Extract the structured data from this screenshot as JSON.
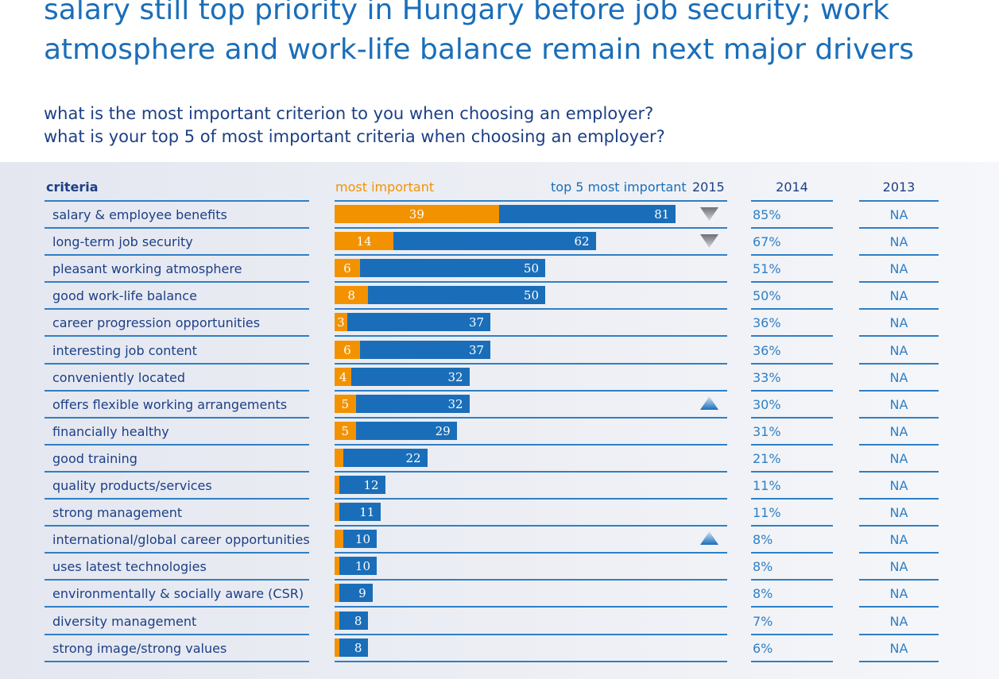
{
  "title": "salary still top priority in Hungary before job security; work atmosphere and work-life balance remain next major drivers",
  "subtitle": [
    "what is the most important criterion to you when choosing an employer?",
    "what is your top 5 of most important criteria when choosing an employer?"
  ],
  "headers": {
    "criteria": "criteria",
    "most_important": "most important",
    "top5": "top 5 most important",
    "y2015": "2015",
    "y2014": "2014",
    "y2013": "2013"
  },
  "colors": {
    "most_important": "#f39200",
    "top5": "#1a6eb9",
    "text": "#1c3f86",
    "lines": "#2e7fc5"
  },
  "chart_data": {
    "type": "bar",
    "orientation": "horizontal",
    "categories": [
      "salary & employee benefits",
      "long-term job security",
      "pleasant working atmosphere",
      "good work-life balance",
      "career progression opportunities",
      "interesting job content",
      "conveniently located",
      "offers flexible working arrangements",
      "financially healthy",
      "good training",
      "quality products/services",
      "strong management",
      "international/global career opportunities",
      "uses latest technologies",
      "environmentally & socially aware (CSR)",
      "diversity management",
      "strong image/strong values"
    ],
    "series": [
      {
        "name": "most important",
        "values": [
          39,
          14,
          6,
          8,
          3,
          6,
          4,
          5,
          5,
          2,
          1,
          1,
          2,
          1,
          1,
          1,
          1
        ],
        "labels": [
          "39",
          "14",
          "6",
          "8",
          "3",
          "6",
          "4",
          "5",
          "5",
          "",
          "",
          "",
          "",
          "",
          "",
          "",
          ""
        ]
      },
      {
        "name": "top 5 most important",
        "values": [
          81,
          62,
          50,
          50,
          37,
          37,
          32,
          32,
          29,
          22,
          12,
          11,
          10,
          10,
          9,
          8,
          8
        ],
        "labels": [
          "81",
          "62",
          "50",
          "50",
          "37",
          "37",
          "32",
          "32",
          "29",
          "22",
          "12",
          "11",
          "10",
          "10",
          "9",
          "8",
          "8"
        ]
      }
    ],
    "trend_2015": [
      "down",
      "down",
      "",
      "",
      "",
      "",
      "",
      "up",
      "",
      "",
      "",
      "",
      "up",
      "",
      "",
      "",
      ""
    ],
    "values_2014": [
      "85%",
      "67%",
      "51%",
      "50%",
      "36%",
      "36%",
      "33%",
      "30%",
      "31%",
      "21%",
      "11%",
      "11%",
      "8%",
      "8%",
      "8%",
      "7%",
      "6%"
    ],
    "values_2013": [
      "NA",
      "NA",
      "NA",
      "NA",
      "NA",
      "NA",
      "NA",
      "NA",
      "NA",
      "NA",
      "NA",
      "NA",
      "NA",
      "NA",
      "NA",
      "NA",
      "NA"
    ],
    "xlim": [
      0,
      100
    ]
  }
}
